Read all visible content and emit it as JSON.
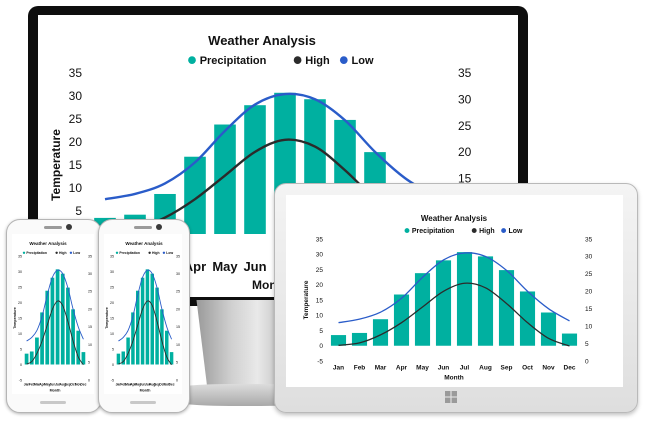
{
  "colors": {
    "precipitation": "#00b0a0",
    "high": "#2b2b2b",
    "low": "#2a5cc9"
  },
  "chart_data": {
    "type": "bar",
    "title": "Weather Analysis",
    "categories": [
      "Jan",
      "Feb",
      "Mar",
      "Apr",
      "May",
      "Jun",
      "Jul",
      "Aug",
      "Sep",
      "Oct",
      "Nov",
      "Dec"
    ],
    "series": [
      {
        "name": "Precipitation",
        "type": "bar",
        "axis": "left",
        "values": [
          3.5,
          4.2,
          8.7,
          16.8,
          23.8,
          28.0,
          30.7,
          29.3,
          24.8,
          17.8,
          10.9,
          4.0
        ]
      },
      {
        "name": "High",
        "type": "line",
        "axis": "right",
        "values": [
          4.5,
          5.2,
          7.5,
          11.0,
          15.5,
          20.0,
          22.3,
          21.0,
          16.5,
          11.0,
          6.5,
          4.3
        ]
      },
      {
        "name": "Low",
        "type": "line",
        "axis": "right",
        "values": [
          11.0,
          12.0,
          14.0,
          18.0,
          24.0,
          29.0,
          31.0,
          30.0,
          26.0,
          20.0,
          15.0,
          11.5
        ]
      }
    ],
    "ylabel": "Temperature",
    "xlabel": "Month",
    "ylim": [
      -5,
      35
    ],
    "y2lim": [
      0,
      35
    ],
    "y_ticks": [
      "-5",
      "0",
      "5",
      "10",
      "15",
      "20",
      "25",
      "30",
      "35"
    ],
    "y2_ticks": [
      "0",
      "5",
      "10",
      "15",
      "20",
      "25",
      "30",
      "35"
    ],
    "legend_position": "top",
    "grid": false
  }
}
